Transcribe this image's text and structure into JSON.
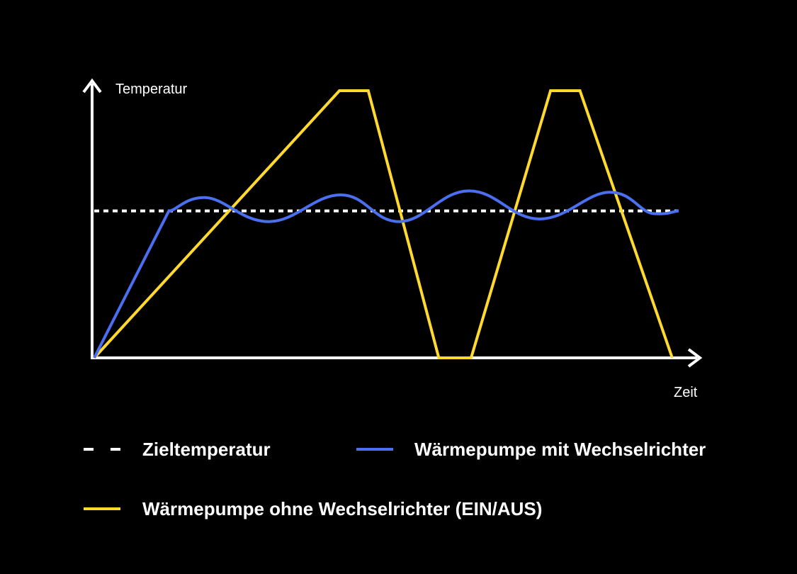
{
  "chart_data": {
    "type": "line",
    "ylabel": "Temperatur",
    "xlabel": "Zeit",
    "xlim": [
      0,
      100
    ],
    "ylim": [
      0,
      100
    ],
    "grid": false,
    "legend_position": "bottom",
    "series": [
      {
        "name": "Zieltemperatur",
        "style": "dashed",
        "color": "#ffffff",
        "points": [
          [
            0.6,
            55
          ],
          [
            100,
            55
          ]
        ]
      },
      {
        "name": "Wärmepumpe mit Wechselrichter",
        "style": "solid",
        "color": "#4a6ff0",
        "points": [
          [
            0.6,
            0
          ],
          [
            13.3,
            55
          ],
          [
            19.5,
            60
          ],
          [
            30.3,
            51
          ],
          [
            42.5,
            61
          ],
          [
            52.5,
            51
          ],
          [
            64.3,
            62.5
          ],
          [
            76.3,
            52
          ],
          [
            88.2,
            62
          ],
          [
            95.7,
            54
          ],
          [
            100,
            55
          ]
        ]
      },
      {
        "name": "Wärmepumpe ohne Wechselrichter (EIN/AUS)",
        "style": "solid",
        "color": "#ffd92e",
        "points": [
          [
            0.6,
            0
          ],
          [
            42.3,
            100
          ],
          [
            47.2,
            100
          ],
          [
            59.2,
            0
          ],
          [
            64.7,
            0
          ],
          [
            78.2,
            100
          ],
          [
            83.2,
            100
          ],
          [
            98.9,
            0
          ]
        ]
      }
    ]
  },
  "legend": {
    "items": [
      {
        "label": "Zieltemperatur",
        "color": "#ffffff",
        "style": "dashed"
      },
      {
        "label": "Wärmepumpe mit Wechselrichter",
        "color": "#4a6ff0",
        "style": "solid"
      },
      {
        "label": "Wärmepumpe ohne Wechselrichter (EIN/AUS)",
        "color": "#ffd92e",
        "style": "solid"
      }
    ]
  }
}
